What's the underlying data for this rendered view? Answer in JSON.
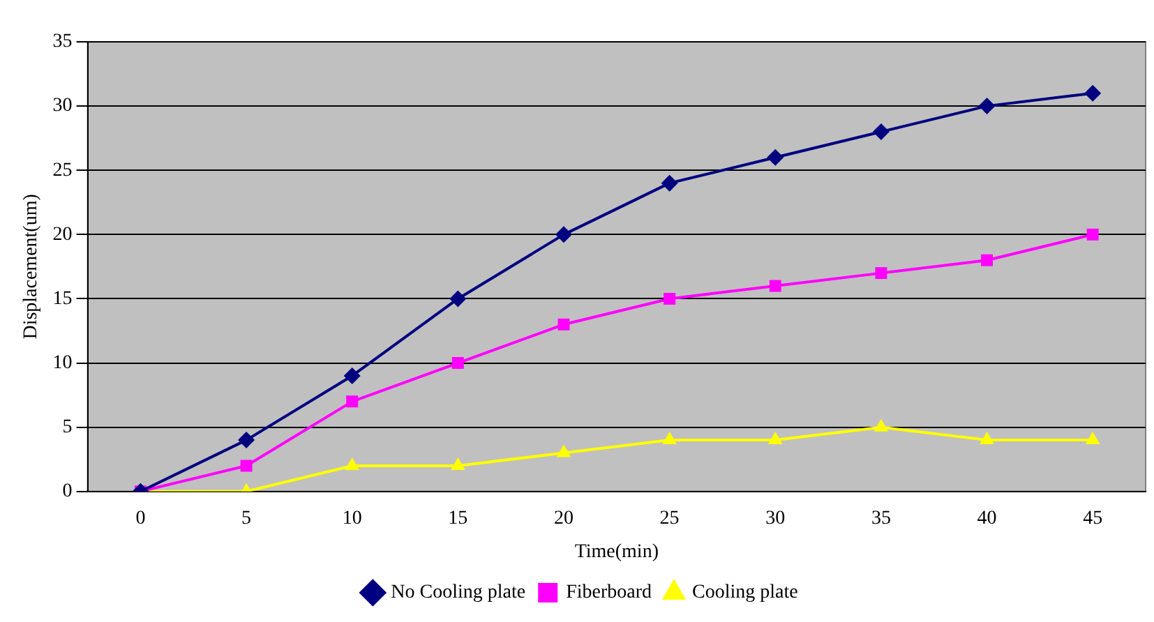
{
  "chart_data": {
    "type": "line",
    "xlabel": "Time(min)",
    "ylabel": "Displacement(um)",
    "categories": [
      "0",
      "5",
      "10",
      "15",
      "20",
      "25",
      "30",
      "35",
      "40",
      "45"
    ],
    "ylim": [
      0,
      35
    ],
    "yticks": [
      0,
      5,
      10,
      15,
      20,
      25,
      30,
      35
    ],
    "grid": "y",
    "legend": "bottom",
    "line_style": "solid",
    "series": [
      {
        "name": "No Cooling plate",
        "color": "#000080",
        "marker": "diamond",
        "values": [
          0,
          4,
          9,
          15,
          20,
          24,
          26,
          28,
          30,
          31
        ]
      },
      {
        "name": "Fiberboard",
        "color": "#ff00ff",
        "marker": "square",
        "values": [
          0,
          2,
          7,
          10,
          13,
          15,
          16,
          17,
          18,
          20
        ]
      },
      {
        "name": "Cooling plate",
        "color": "#ffff00",
        "marker": "triangle",
        "values": [
          0,
          0,
          2,
          2,
          3,
          4,
          4,
          5,
          4,
          4
        ]
      }
    ]
  }
}
